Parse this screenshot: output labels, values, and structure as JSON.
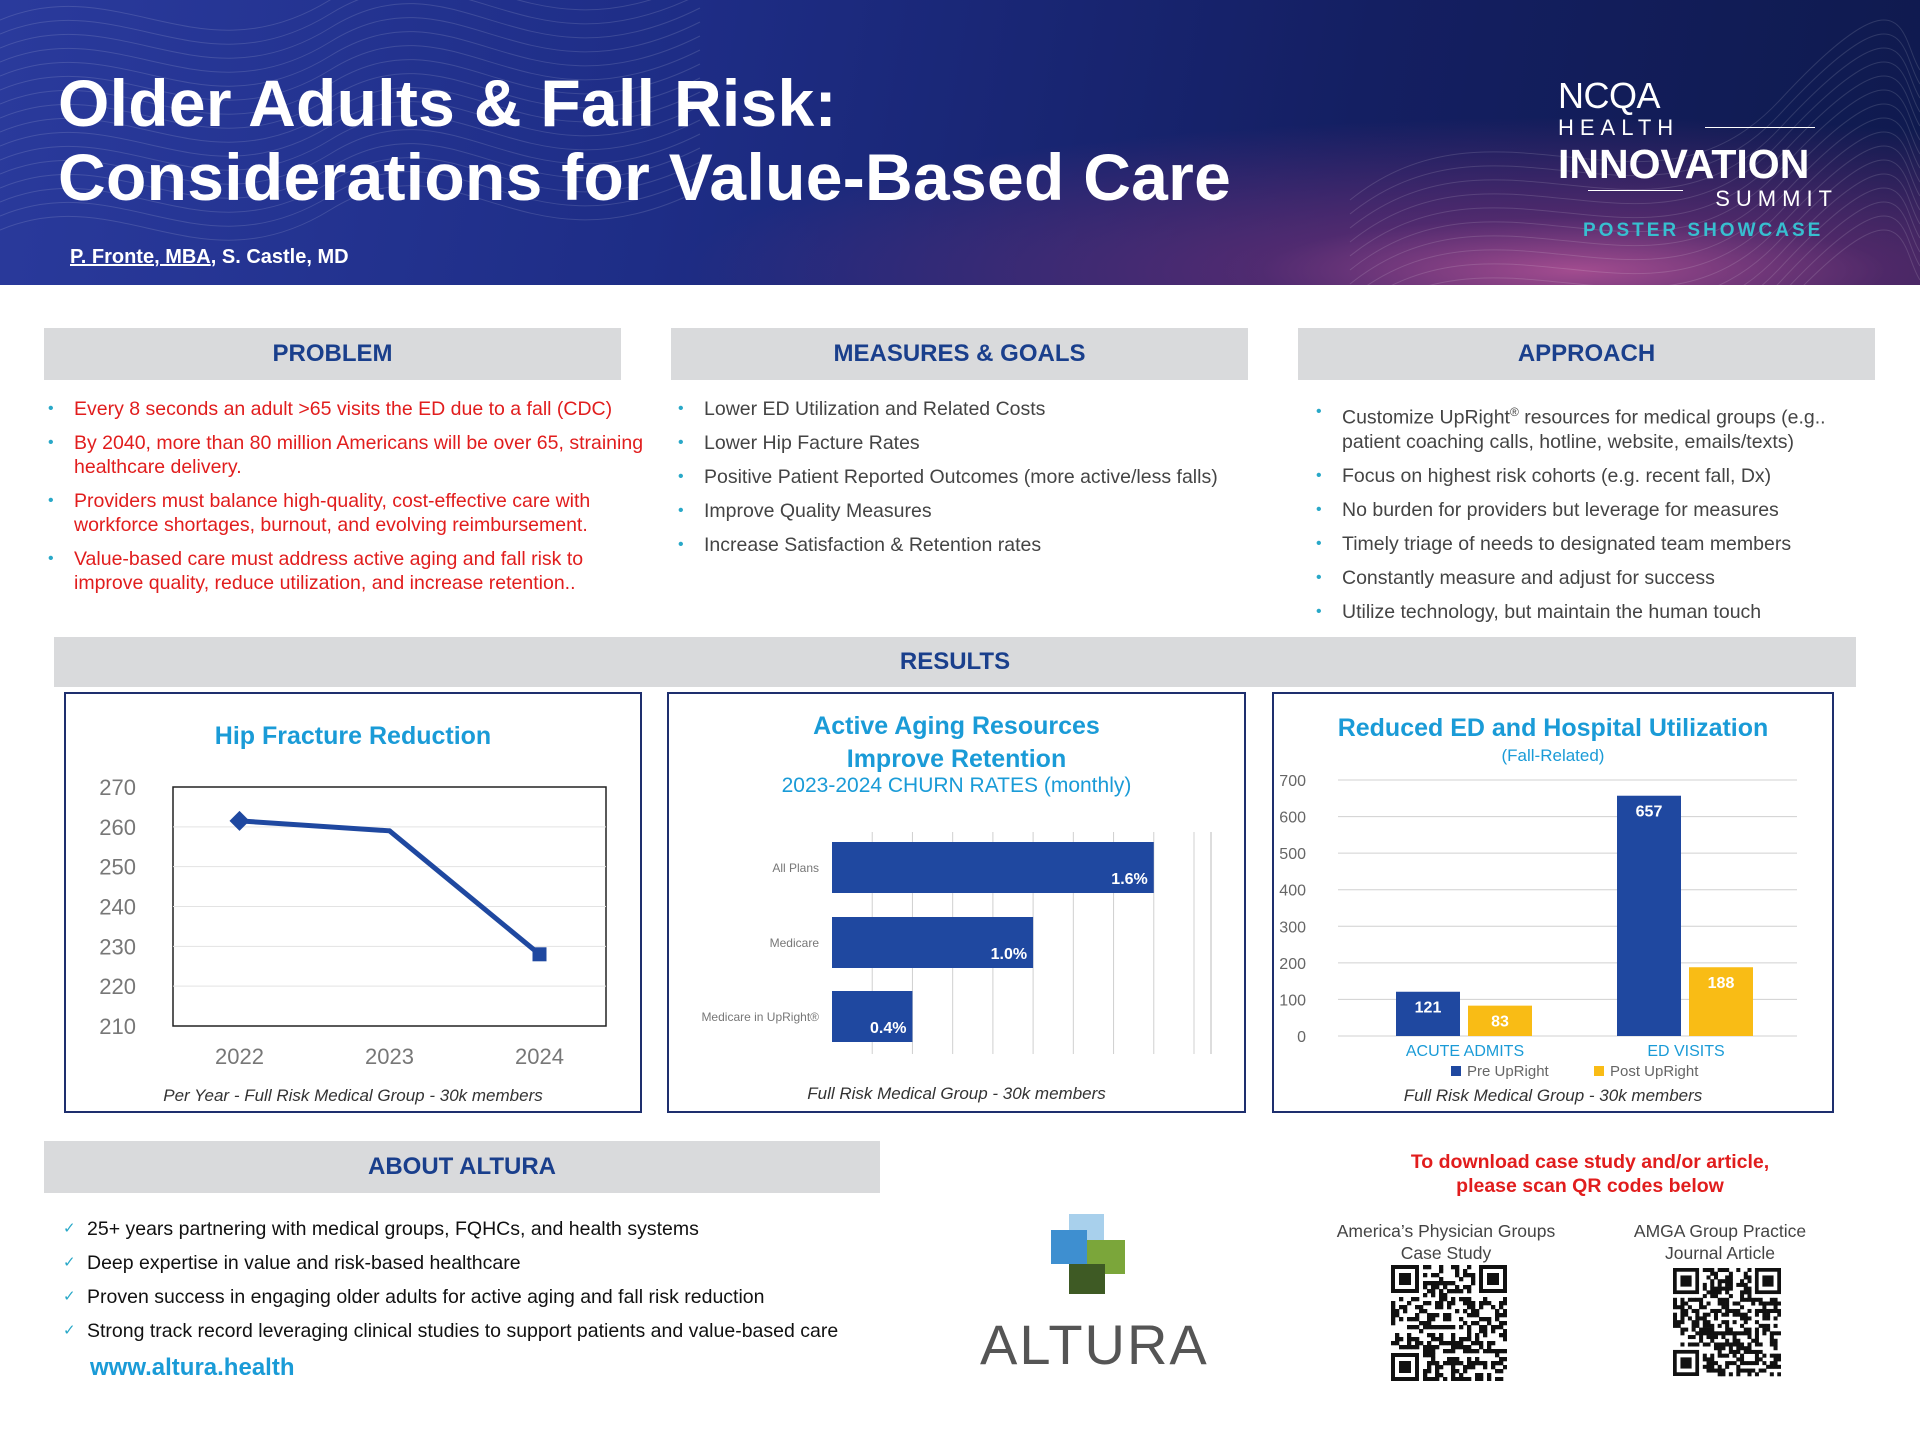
{
  "header": {
    "title_line1": "Older Adults & Fall Risk:",
    "title_line2": "Considerations for Value-Based Care",
    "author_underlined": "P. Fronte, MBA",
    "author_rest": ", S. Castle, MD",
    "summit": {
      "ncqa": "NCQA",
      "health": "HEALTH",
      "innovation": "INNOVATION",
      "summit": "SUMMIT",
      "showcase": "POSTER SHOWCASE"
    }
  },
  "problem": {
    "heading": "PROBLEM",
    "items": [
      "Every 8 seconds an adult >65 visits the ED due to a fall (CDC)",
      "By 2040, more than 80 million Americans will be over 65, straining healthcare delivery.",
      "Providers must balance high-quality, cost-effective care with workforce shortages, burnout, and evolving reimbursement.",
      "Value-based care must address active aging and fall risk to improve quality, reduce utilization, and increase retention.."
    ]
  },
  "measures": {
    "heading": "MEASURES & GOALS",
    "items": [
      "Lower ED Utilization and Related Costs",
      "Lower Hip Facture Rates",
      "Positive Patient Reported Outcomes (more active/less falls)",
      "Improve Quality Measures",
      "Increase Satisfaction & Retention rates"
    ]
  },
  "approach": {
    "heading": "APPROACH",
    "item1_pre": "Customize UpRight",
    "item1_sup": "®",
    "item1_post": " resources for medical groups (e.g.. patient coaching calls, hotline, website, emails/texts)",
    "items": [
      "Focus on highest risk cohorts (e.g. recent fall, Dx)",
      "No burden for providers but leverage for measures",
      "Timely triage of needs to designated team members",
      "Constantly measure and adjust for success",
      "Utilize technology, but maintain the human touch"
    ]
  },
  "results": {
    "heading": "RESULTS"
  },
  "chart_data": [
    {
      "type": "line",
      "title": "Hip Fracture Reduction",
      "x": [
        "2022",
        "2023",
        "2024"
      ],
      "values": [
        261.5,
        259,
        228
      ],
      "ylim": [
        210,
        270
      ],
      "yticks": [
        "270",
        "260",
        "250",
        "240",
        "230",
        "220",
        "210"
      ],
      "caption": "Per Year - Full Risk Medical Group - 30k members",
      "color": "#1f48a0"
    },
    {
      "type": "bar",
      "orientation": "horizontal",
      "title_line1": "Active Aging Resources",
      "title_line2": "Improve Retention",
      "subtitle": "2023-2024 CHURN RATES (monthly)",
      "categories": [
        "All Plans",
        "Medicare",
        "Medicare in UpRight®"
      ],
      "values": [
        1.6,
        1.0,
        0.4
      ],
      "labels": [
        "1.6%",
        "1.0%",
        "0.4%"
      ],
      "xlim": [
        0,
        1.8
      ],
      "caption": "Full Risk Medical Group - 30k members",
      "color": "#1f48a0"
    },
    {
      "type": "bar",
      "title": "Reduced ED and Hospital Utilization",
      "subtitle": "(Fall-Related)",
      "categories": [
        "ACUTE ADMITS",
        "ED VISITS"
      ],
      "series": [
        {
          "name": "Pre UpRight",
          "values": [
            121,
            657
          ],
          "color": "#1f48a0"
        },
        {
          "name": "Post UpRight",
          "values": [
            83,
            188
          ],
          "color": "#f9bc15"
        }
      ],
      "ylim": [
        0,
        700
      ],
      "yticks": [
        "700",
        "600",
        "500",
        "400",
        "300",
        "200",
        "100",
        "0"
      ],
      "caption": "Full Risk Medical Group - 30k members"
    }
  ],
  "about": {
    "heading": "ABOUT ALTURA",
    "items": [
      "25+ years partnering with medical groups, FQHCs, and health systems",
      "Deep expertise in value and risk-based healthcare",
      "Proven success in engaging older adults for active aging and fall risk reduction",
      "Strong track record leveraging clinical studies to support patients and value-based care"
    ],
    "website": "www.altura.health",
    "logo_text": "ALTURA"
  },
  "download": {
    "line1": "To download case study and/or article,",
    "line2": "please scan QR codes below",
    "qr1_line1": "America’s Physician Groups",
    "qr1_line2": "Case Study",
    "qr2_line1": "AMGA Group Practice",
    "qr2_line2": "Journal Article"
  }
}
